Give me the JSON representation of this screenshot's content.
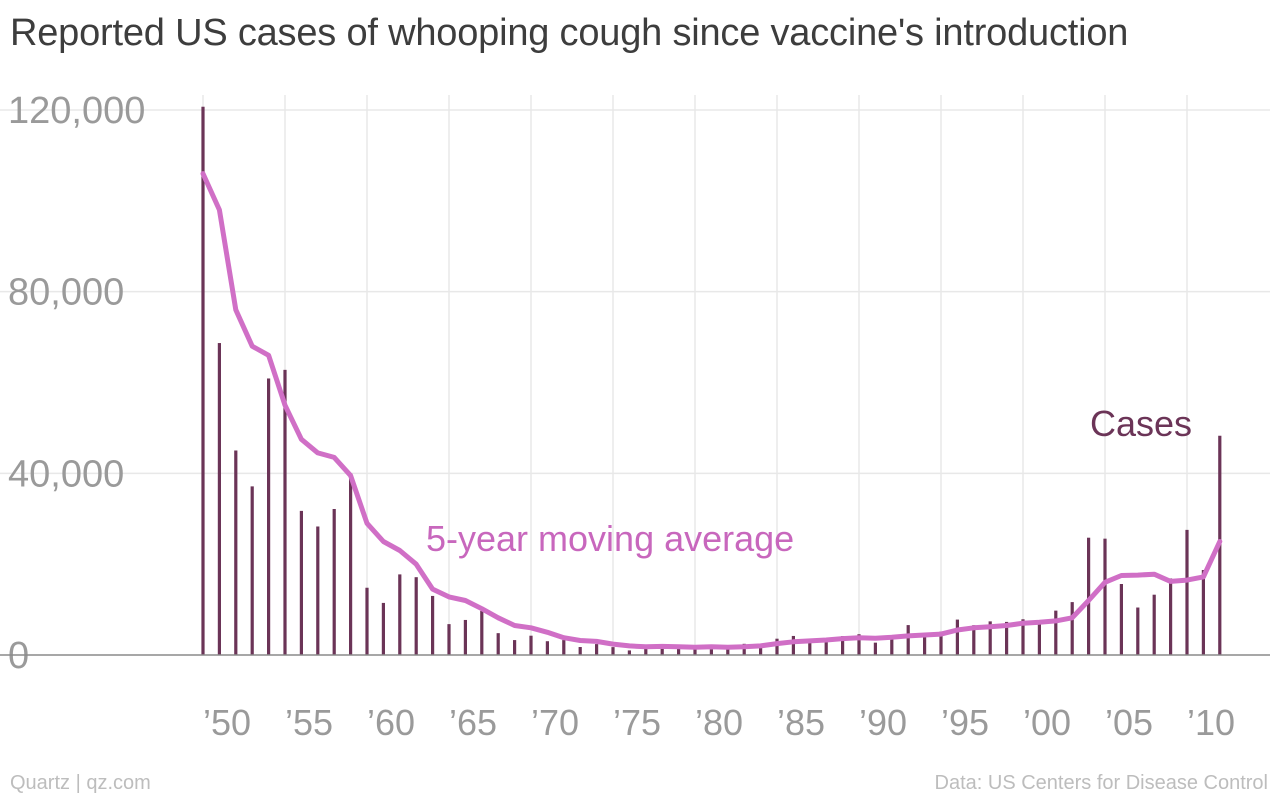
{
  "chart_data": {
    "type": "bar+line",
    "title": "Reported US cases of whooping cough since vaccine's introduction",
    "source": "Data: US Centers for Disease Control",
    "credit": "Quartz | qz.com",
    "ylim": [
      0,
      120000
    ],
    "yticks": [
      0,
      40000,
      80000,
      120000
    ],
    "ytick_labels": [
      "0",
      "40,000",
      "80,000",
      "120,000"
    ],
    "xticks": [
      1950,
      1955,
      1960,
      1965,
      1970,
      1975,
      1980,
      1985,
      1990,
      1995,
      2000,
      2005,
      2010
    ],
    "xtick_labels": [
      "’50",
      "’55",
      "’60",
      "’65",
      "’70",
      "’75",
      "’80",
      "’85",
      "’90",
      "’95",
      "’00",
      "’05",
      "’10"
    ],
    "grid": "vertical and horizontal",
    "colors": {
      "cases": "#6b3457",
      "average": "#d06fc6",
      "grid": "#e8e8e8",
      "axis": "#8a8a8a"
    },
    "series": [
      {
        "name": "Cases",
        "kind": "bar",
        "x": [
          1950,
          1951,
          1952,
          1953,
          1954,
          1955,
          1956,
          1957,
          1958,
          1959,
          1960,
          1961,
          1962,
          1963,
          1964,
          1965,
          1966,
          1967,
          1968,
          1969,
          1970,
          1971,
          1972,
          1973,
          1974,
          1975,
          1976,
          1977,
          1978,
          1979,
          1980,
          1981,
          1982,
          1983,
          1984,
          1985,
          1986,
          1987,
          1988,
          1989,
          1990,
          1991,
          1992,
          1993,
          1994,
          1995,
          1996,
          1997,
          1998,
          1999,
          2000,
          2001,
          2002,
          2003,
          2004,
          2005,
          2006,
          2007,
          2008,
          2009,
          2010,
          2011,
          2012
        ],
        "values": [
          120718,
          68687,
          45030,
          37129,
          60886,
          62786,
          31732,
          28295,
          32148,
          40005,
          14809,
          11468,
          17749,
          17135,
          13005,
          6799,
          7717,
          9718,
          4810,
          3285,
          4249,
          3036,
          3287,
          1759,
          2402,
          1738,
          1010,
          2177,
          2063,
          1623,
          1730,
          1248,
          1895,
          2463,
          2276,
          3589,
          4195,
          2823,
          3450,
          4157,
          4570,
          2719,
          4083,
          6586,
          4617,
          5137,
          7796,
          6564,
          7405,
          7288,
          7867,
          7580,
          9771,
          11647,
          25827,
          25616,
          15632,
          10454,
          13278,
          16858,
          27550,
          18719,
          48277
        ]
      },
      {
        "name": "5-year moving average",
        "kind": "line",
        "x": [
          1950,
          1951,
          1952,
          1953,
          1954,
          1955,
          1956,
          1957,
          1958,
          1959,
          1960,
          1961,
          1962,
          1963,
          1964,
          1965,
          1966,
          1967,
          1968,
          1969,
          1970,
          1971,
          1972,
          1973,
          1974,
          1975,
          1976,
          1977,
          1978,
          1979,
          1980,
          1981,
          1982,
          1983,
          1984,
          1985,
          1986,
          1987,
          1988,
          1989,
          1990,
          1991,
          1992,
          1993,
          1994,
          1995,
          1996,
          1997,
          1998,
          1999,
          2000,
          2001,
          2002,
          2003,
          2004,
          2005,
          2006,
          2007,
          2008,
          2009,
          2010,
          2011,
          2012
        ],
        "values": [
          106000,
          98000,
          76000,
          68000,
          66000,
          55000,
          47500,
          44500,
          43500,
          39500,
          29000,
          25000,
          23000,
          20000,
          14500,
          12800,
          12000,
          10200,
          8200,
          6500,
          6000,
          5000,
          3800,
          3200,
          3000,
          2400,
          2000,
          1800,
          1900,
          1800,
          1700,
          1800,
          1700,
          1800,
          2000,
          2500,
          2900,
          3100,
          3300,
          3600,
          3800,
          3700,
          3900,
          4200,
          4400,
          4600,
          5500,
          6000,
          6200,
          6500,
          7000,
          7200,
          7500,
          8200,
          12000,
          16000,
          17500,
          17600,
          17800,
          16200,
          16500,
          17200,
          25000
        ]
      }
    ],
    "annotations": [
      {
        "text": "Cases",
        "series": "Cases"
      },
      {
        "text": "5-year moving average",
        "series": "5-year moving average"
      }
    ]
  }
}
